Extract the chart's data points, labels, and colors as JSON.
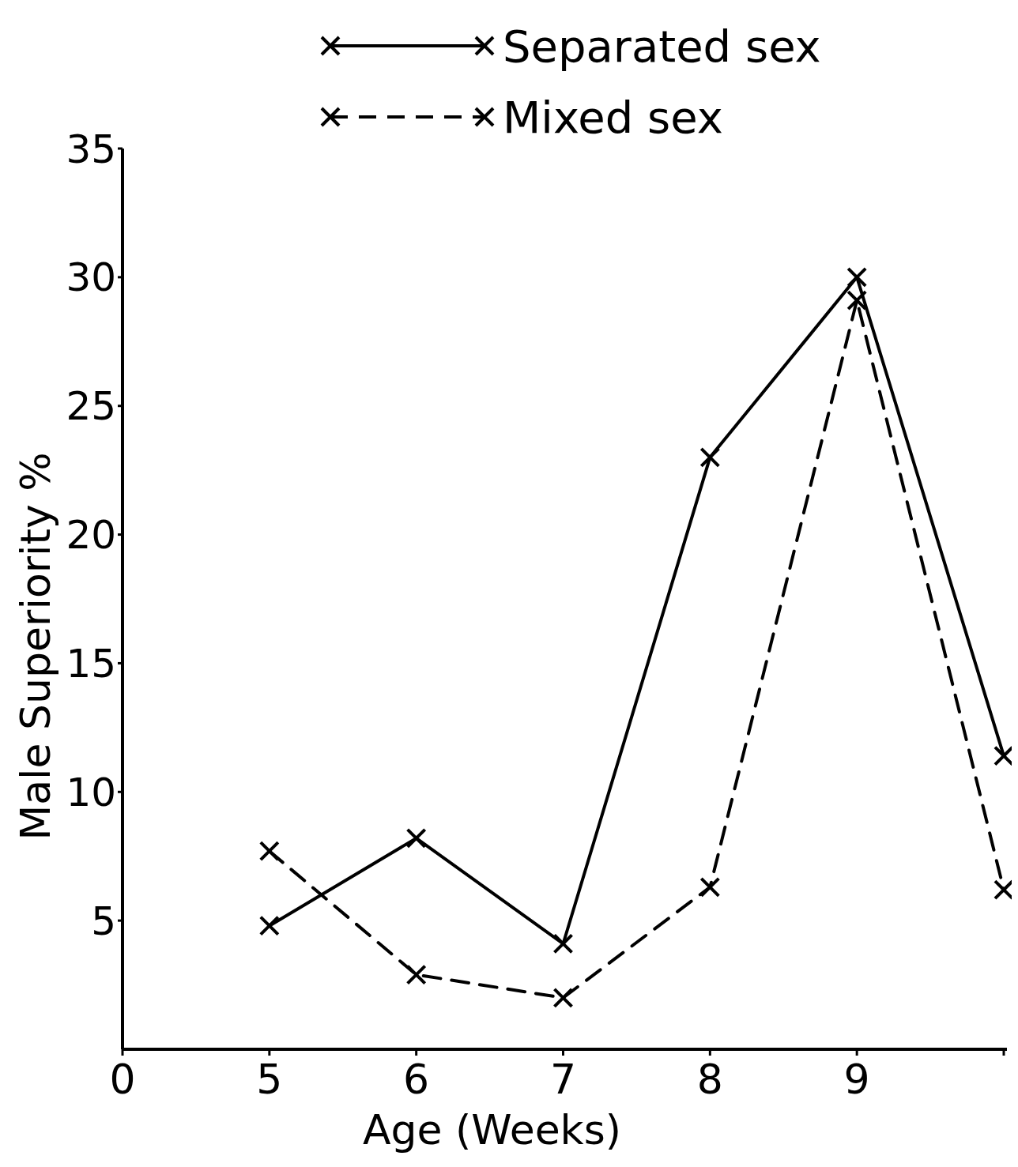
{
  "chart_data": {
    "type": "line",
    "xlabel": "Age (Weeks)",
    "ylabel": "Male Superiority %",
    "categories": [
      "0",
      "5",
      "6",
      "7",
      "8",
      "9",
      null
    ],
    "series": [
      {
        "name": "Separated sex",
        "color": "#000000",
        "line_style": "solid",
        "values": [
          null,
          4.8,
          8.2,
          4.1,
          23,
          30,
          11.4
        ]
      },
      {
        "name": "Mixed sex",
        "color": "#000000",
        "line_style": "dashed",
        "values": [
          null,
          7.7,
          2.9,
          2.0,
          6.3,
          29.1,
          6.2
        ]
      }
    ],
    "ylim": [
      0,
      35
    ],
    "yticks": [
      5,
      10,
      15,
      20,
      25,
      30,
      35
    ],
    "marker": "cross",
    "legend": "top",
    "grid": false
  }
}
